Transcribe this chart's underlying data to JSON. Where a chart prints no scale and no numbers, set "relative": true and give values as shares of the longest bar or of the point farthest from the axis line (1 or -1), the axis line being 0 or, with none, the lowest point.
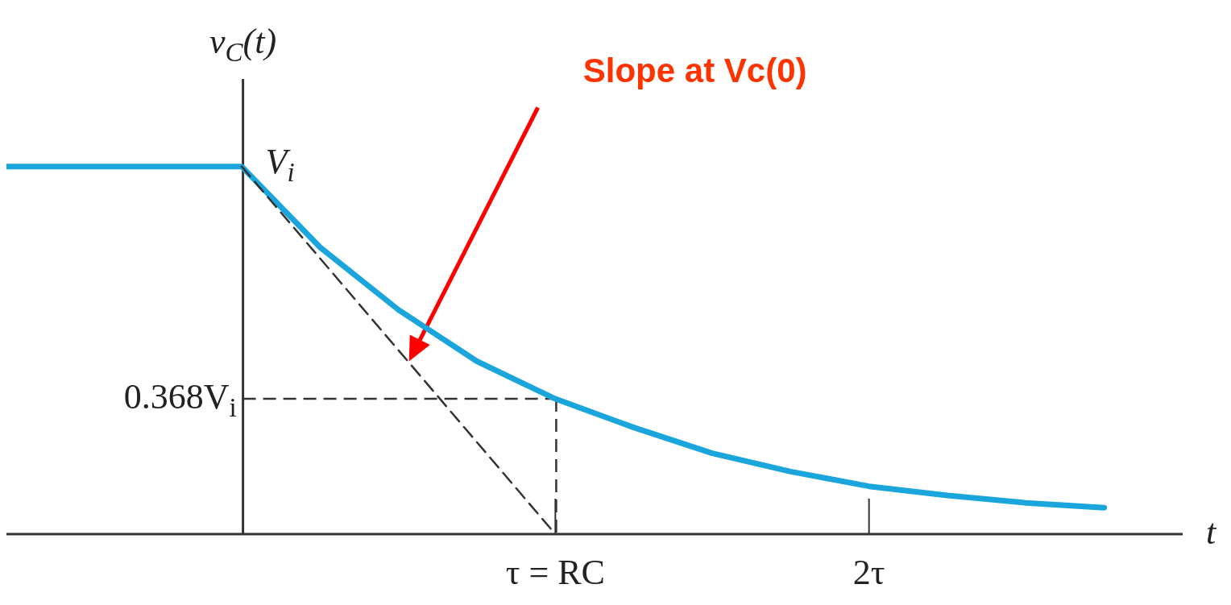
{
  "chart_data": {
    "type": "line",
    "relative": true,
    "ylabel": "v$_{C}$(t)",
    "xlabel": "t",
    "categories": [
      null,
      null,
      null,
      null,
      null,
      null,
      null,
      "τ = RC",
      null,
      null,
      null,
      "2τ",
      null,
      null,
      null,
      null
    ],
    "marker": "none",
    "series": [
      {
        "color": "#1aa6dc",
        "line_style": "solid",
        "values": [
          1,
          1,
          1,
          1,
          0.78,
          0.61,
          0.47,
          0.368,
          0.29,
          0.22,
          0.17,
          0.13,
          0.105,
          0.085,
          0.072,
          null
        ]
      },
      {
        "color": "#333333",
        "line_style": "dashed",
        "values": [
          null,
          null,
          null,
          1,
          0.75,
          0.5,
          0.25,
          0,
          null,
          null,
          null,
          null,
          null,
          null,
          null,
          null
        ]
      }
    ],
    "annotations": [
      "V$_{i}$",
      {
        "text": "0.368V$_{i}$",
        "x": "τ = RC",
        "y": 0.368
      },
      "Slope at Vc(0)"
    ]
  }
}
